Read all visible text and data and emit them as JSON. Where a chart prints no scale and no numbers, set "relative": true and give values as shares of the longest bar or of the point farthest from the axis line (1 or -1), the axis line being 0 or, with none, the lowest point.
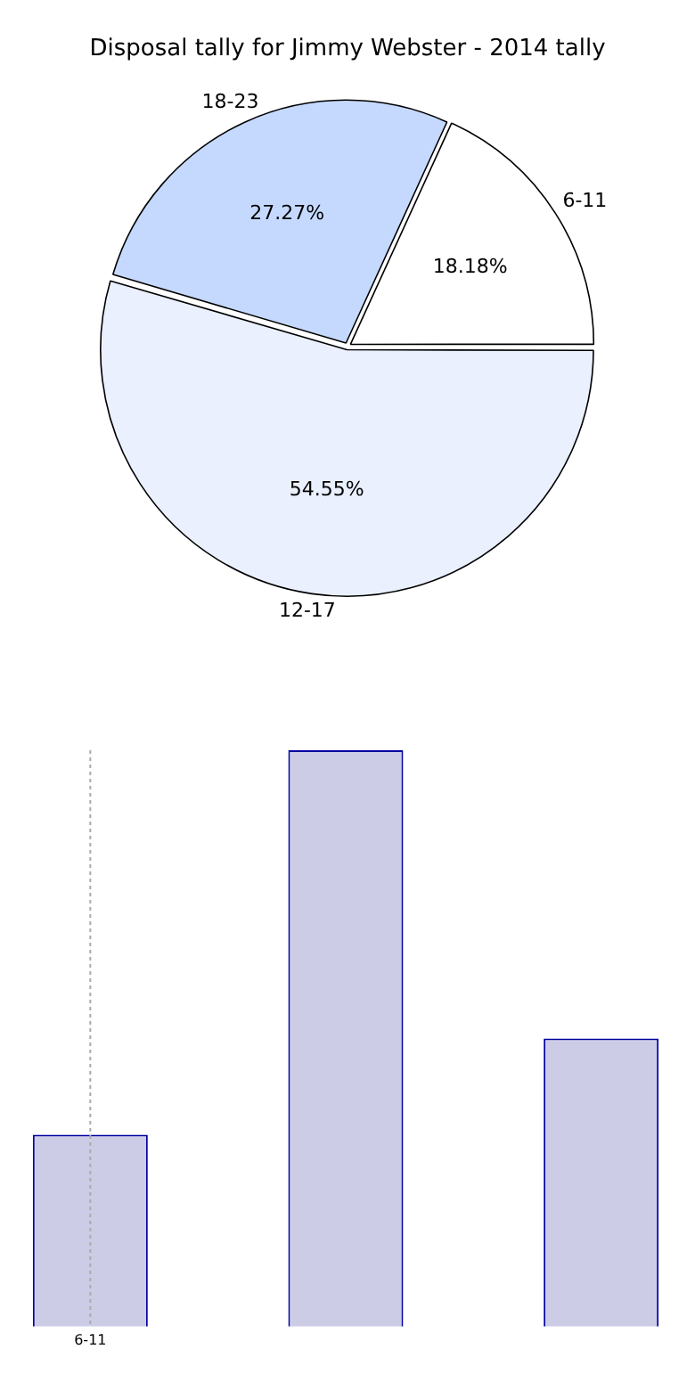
{
  "chart_data": [
    {
      "type": "pie",
      "title": "Disposal tally for Jimmy Webster - 2014 tally",
      "categories": [
        "6-11",
        "12-17",
        "18-23"
      ],
      "values": [
        18.18,
        54.55,
        27.27
      ],
      "colors": [
        "#ffffff",
        "#eaf0fe",
        "#c5d9fe"
      ],
      "value_labels": [
        "18.18%",
        "54.55%",
        "27.27%"
      ],
      "legend": false
    },
    {
      "type": "bar",
      "categories": [
        "6-11",
        null,
        null
      ],
      "values": [
        0.333,
        1,
        0.5
      ],
      "color": "#cccce6",
      "relative": true,
      "ref_lines": [
        {
          "axis": "x",
          "value": "6-11",
          "color": "#aaaaaa",
          "line_style": "dotted"
        }
      ],
      "tick_labels": "x",
      "legend": false
    }
  ]
}
